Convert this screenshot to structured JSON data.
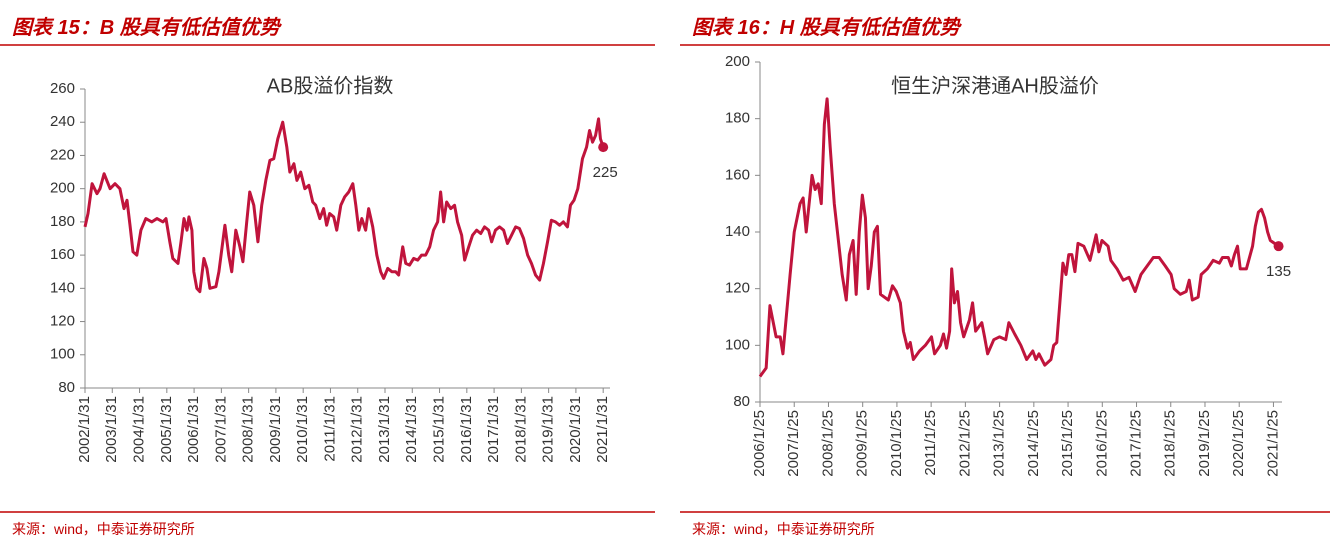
{
  "chart_data": [
    {
      "type": "line",
      "figure_label": "图表 15：B 股具有低估值优势",
      "title": "AB股溢价指数",
      "source": "来源：wind，中泰证券研究所",
      "xlim": [
        2002,
        2021.25
      ],
      "xticks": [
        {
          "value": 2002,
          "label": "2002/1/31"
        },
        {
          "value": 2003,
          "label": "2003/1/31"
        },
        {
          "value": 2004,
          "label": "2004/1/31"
        },
        {
          "value": 2005,
          "label": "2005/1/31"
        },
        {
          "value": 2006,
          "label": "2006/1/31"
        },
        {
          "value": 2007,
          "label": "2007/1/31"
        },
        {
          "value": 2008,
          "label": "2008/1/31"
        },
        {
          "value": 2009,
          "label": "2009/1/31"
        },
        {
          "value": 2010,
          "label": "2010/1/31"
        },
        {
          "value": 2011,
          "label": "2011/1/31"
        },
        {
          "value": 2012,
          "label": "2012/1/31"
        },
        {
          "value": 2013,
          "label": "2013/1/31"
        },
        {
          "value": 2014,
          "label": "2014/1/31"
        },
        {
          "value": 2015,
          "label": "2015/1/31"
        },
        {
          "value": 2016,
          "label": "2016/1/31"
        },
        {
          "value": 2017,
          "label": "2017/1/31"
        },
        {
          "value": 2018,
          "label": "2018/1/31"
        },
        {
          "value": 2019,
          "label": "2019/1/31"
        },
        {
          "value": 2020,
          "label": "2020/1/31"
        },
        {
          "value": 2021,
          "label": "2021/1/31"
        }
      ],
      "ylim": [
        80,
        260
      ],
      "yticks": [
        80,
        100,
        120,
        140,
        160,
        180,
        200,
        220,
        240,
        260
      ],
      "x": [
        2002.0,
        2002.11,
        2002.26,
        2002.44,
        2002.55,
        2002.7,
        2002.92,
        2003.1,
        2003.28,
        2003.43,
        2003.54,
        2003.65,
        2003.76,
        2003.9,
        2004.05,
        2004.23,
        2004.45,
        2004.64,
        2004.86,
        2004.97,
        2005.11,
        2005.22,
        2005.41,
        2005.52,
        2005.63,
        2005.74,
        2005.81,
        2005.92,
        2005.99,
        2006.1,
        2006.21,
        2006.36,
        2006.47,
        2006.58,
        2006.8,
        2006.91,
        2007.13,
        2007.27,
        2007.38,
        2007.53,
        2007.68,
        2007.79,
        2007.93,
        2008.04,
        2008.19,
        2008.34,
        2008.48,
        2008.63,
        2008.78,
        2008.92,
        2009.07,
        2009.25,
        2009.4,
        2009.51,
        2009.66,
        2009.77,
        2009.91,
        2010.06,
        2010.21,
        2010.35,
        2010.46,
        2010.61,
        2010.75,
        2010.86,
        2010.97,
        2011.12,
        2011.23,
        2011.38,
        2011.52,
        2011.67,
        2011.82,
        2011.93,
        2012.04,
        2012.15,
        2012.29,
        2012.4,
        2012.55,
        2012.7,
        2012.84,
        2012.95,
        2013.1,
        2013.25,
        2013.39,
        2013.5,
        2013.65,
        2013.76,
        2013.9,
        2014.05,
        2014.2,
        2014.34,
        2014.49,
        2014.64,
        2014.78,
        2014.93,
        2015.04,
        2015.15,
        2015.26,
        2015.41,
        2015.55,
        2015.66,
        2015.81,
        2015.92,
        2016.07,
        2016.21,
        2016.36,
        2016.51,
        2016.65,
        2016.8,
        2016.91,
        2017.05,
        2017.2,
        2017.35,
        2017.49,
        2017.64,
        2017.79,
        2017.93,
        2018.08,
        2018.23,
        2018.37,
        2018.52,
        2018.67,
        2018.81,
        2018.96,
        2019.1,
        2019.25,
        2019.4,
        2019.54,
        2019.69,
        2019.8,
        2019.93,
        2020.07,
        2020.24,
        2020.39,
        2020.5,
        2020.61,
        2020.72,
        2020.83,
        2020.9,
        2021.0
      ],
      "series": [
        {
          "color": "#c0143c",
          "values": [
            177,
            185,
            203,
            197,
            200,
            209,
            200,
            203,
            200,
            188,
            193,
            178,
            162,
            160,
            175,
            182,
            180,
            182,
            180,
            182,
            168,
            158,
            155,
            168,
            182,
            175,
            183,
            175,
            150,
            140,
            138,
            158,
            152,
            140,
            141,
            150,
            178,
            160,
            150,
            175,
            165,
            156,
            180,
            198,
            190,
            168,
            190,
            205,
            217,
            218,
            230,
            240,
            225,
            210,
            215,
            205,
            210,
            200,
            202,
            192,
            190,
            182,
            188,
            178,
            185,
            183,
            175,
            190,
            195,
            198,
            203,
            190,
            175,
            182,
            175,
            188,
            177,
            160,
            150,
            146,
            152,
            150,
            150,
            148,
            165,
            155,
            154,
            158,
            157,
            160,
            160,
            165,
            175,
            180,
            198,
            180,
            192,
            188,
            190,
            180,
            172,
            157,
            165,
            172,
            175,
            173,
            177,
            175,
            168,
            175,
            177,
            175,
            167,
            172,
            177,
            176,
            170,
            160,
            155,
            148,
            145,
            155,
            168,
            181,
            180,
            178,
            180,
            177,
            190,
            193,
            200,
            218,
            225,
            235,
            228,
            232,
            242,
            230,
            225
          ]
        }
      ]
    },
    {
      "type": "line",
      "figure_label": "图表 16：H 股具有低估值优势",
      "title": "恒生沪深港通AH股溢价",
      "source": "来源：wind，中泰证券研究所",
      "xlim": [
        2006,
        2021.25
      ],
      "xticks": [
        {
          "value": 2006,
          "label": "2006/1/25"
        },
        {
          "value": 2007,
          "label": "2007/1/25"
        },
        {
          "value": 2008,
          "label": "2008/1/25"
        },
        {
          "value": 2009,
          "label": "2009/1/25"
        },
        {
          "value": 2010,
          "label": "2010/1/25"
        },
        {
          "value": 2011,
          "label": "2011/1/25"
        },
        {
          "value": 2012,
          "label": "2012/1/25"
        },
        {
          "value": 2013,
          "label": "2013/1/25"
        },
        {
          "value": 2014,
          "label": "2014/1/25"
        },
        {
          "value": 2015,
          "label": "2015/1/25"
        },
        {
          "value": 2016,
          "label": "2016/1/25"
        },
        {
          "value": 2017,
          "label": "2017/1/25"
        },
        {
          "value": 2018,
          "label": "2018/1/25"
        },
        {
          "value": 2019,
          "label": "2019/1/25"
        },
        {
          "value": 2020,
          "label": "2020/1/25"
        },
        {
          "value": 2021,
          "label": "2021/1/25"
        }
      ],
      "ylim": [
        80,
        200
      ],
      "yticks": [
        80,
        100,
        120,
        140,
        160,
        180,
        200
      ],
      "x": [
        2006.0,
        2006.18,
        2006.29,
        2006.47,
        2006.59,
        2006.67,
        2006.88,
        2007.0,
        2007.17,
        2007.26,
        2007.35,
        2007.52,
        2007.61,
        2007.7,
        2007.79,
        2007.88,
        2007.96,
        2008.05,
        2008.17,
        2008.29,
        2008.4,
        2008.52,
        2008.61,
        2008.72,
        2008.81,
        2008.9,
        2008.99,
        2009.08,
        2009.16,
        2009.25,
        2009.34,
        2009.43,
        2009.52,
        2009.75,
        2009.87,
        2009.98,
        2010.1,
        2010.19,
        2010.31,
        2010.39,
        2010.48,
        2010.66,
        2010.83,
        2011.01,
        2011.1,
        2011.27,
        2011.36,
        2011.45,
        2011.54,
        2011.6,
        2011.68,
        2011.77,
        2011.86,
        2011.95,
        2012.12,
        2012.21,
        2012.3,
        2012.48,
        2012.56,
        2012.65,
        2012.83,
        2013.0,
        2013.18,
        2013.27,
        2013.44,
        2013.62,
        2013.79,
        2013.97,
        2014.06,
        2014.15,
        2014.32,
        2014.5,
        2014.58,
        2014.67,
        2014.76,
        2014.85,
        2014.94,
        2015.02,
        2015.11,
        2015.2,
        2015.29,
        2015.46,
        2015.64,
        2015.82,
        2015.9,
        2015.99,
        2016.17,
        2016.25,
        2016.43,
        2016.61,
        2016.78,
        2016.96,
        2017.13,
        2017.31,
        2017.49,
        2017.66,
        2017.84,
        2018.01,
        2018.1,
        2018.28,
        2018.45,
        2018.54,
        2018.63,
        2018.8,
        2018.89,
        2019.07,
        2019.24,
        2019.42,
        2019.51,
        2019.68,
        2019.77,
        2019.86,
        2019.95,
        2020.03,
        2020.21,
        2020.39,
        2020.47,
        2020.56,
        2020.65,
        2020.74,
        2020.83,
        2020.91,
        2021.15
      ],
      "series": [
        {
          "color": "#c0143c",
          "values": [
            89,
            92,
            114,
            103,
            103,
            97,
            125,
            140,
            150,
            152,
            140,
            160,
            155,
            157,
            150,
            178,
            187,
            170,
            150,
            137,
            125,
            116,
            132,
            137,
            118,
            140,
            153,
            145,
            120,
            128,
            140,
            142,
            118,
            116,
            121,
            119,
            115,
            105,
            99,
            101,
            95,
            98,
            100,
            103,
            97,
            100,
            104,
            99,
            105,
            127,
            115,
            119,
            108,
            103,
            109,
            115,
            105,
            108,
            103,
            97,
            102,
            103,
            102,
            108,
            104,
            100,
            95,
            98,
            95,
            97,
            93,
            95,
            100,
            101,
            115,
            129,
            125,
            132,
            132,
            126,
            136,
            135,
            130,
            139,
            133,
            137,
            135,
            130,
            127,
            123,
            124,
            119,
            125,
            128,
            131,
            131,
            128,
            125,
            120,
            118,
            119,
            123,
            116,
            117,
            125,
            127,
            130,
            129,
            131,
            131,
            128,
            132,
            135,
            127,
            127,
            135,
            142,
            147,
            148,
            145,
            140,
            137,
            135
          ]
        }
      ]
    }
  ]
}
